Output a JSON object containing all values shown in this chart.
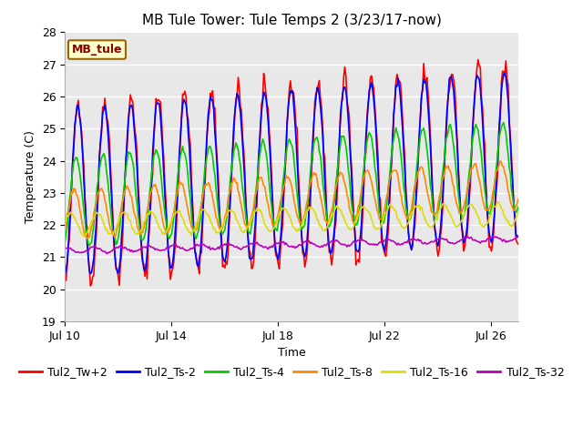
{
  "title": "MB Tule Tower: Tule Temps 2 (3/23/17-now)",
  "xlabel": "Time",
  "ylabel": "Temperature (C)",
  "ylim": [
    19.0,
    28.0
  ],
  "xlim": [
    0,
    17
  ],
  "yticks": [
    19.0,
    20.0,
    21.0,
    22.0,
    23.0,
    24.0,
    25.0,
    26.0,
    27.0,
    28.0
  ],
  "xtick_positions": [
    0,
    4,
    8,
    12,
    16
  ],
  "xtick_labels": [
    "Jul 10",
    "Jul 14",
    "Jul 18",
    "Jul 22",
    "Jul 26"
  ],
  "legend_labels": [
    "Tul2_Tw+2",
    "Tul2_Ts-2",
    "Tul2_Ts-4",
    "Tul2_Ts-8",
    "Tul2_Ts-16",
    "Tul2_Ts-32"
  ],
  "legend_colors": [
    "#ff0000",
    "#0000ff",
    "#00cc00",
    "#ff8800",
    "#dddd00",
    "#bb00bb"
  ],
  "annotation_text": "MB_tule",
  "annotation_bg": "#ffffcc",
  "annotation_border": "#996600",
  "annotation_text_color": "#880000",
  "plot_bg": "#e8e8e8",
  "fig_bg": "#ffffff",
  "title_fontsize": 11,
  "axis_label_fontsize": 9,
  "tick_fontsize": 9,
  "legend_fontsize": 9,
  "linewidth": 1.2,
  "series_params": {
    "tw2": {
      "amp": 2.8,
      "base": 23.0,
      "trend": 0.07,
      "phase": -1.57,
      "amp2": 0.0,
      "phase2": 0.0
    },
    "ts2": {
      "amp": 2.6,
      "base": 23.0,
      "trend": 0.07,
      "phase": -1.47,
      "amp2": 0.0,
      "phase2": 0.0
    },
    "ts4": {
      "amp": 1.4,
      "base": 22.7,
      "trend": 0.065,
      "phase": -1.1,
      "amp2": 0.0,
      "phase2": 0.0
    },
    "ts8": {
      "amp": 0.75,
      "base": 22.3,
      "trend": 0.055,
      "phase": -0.6,
      "amp2": 0.0,
      "phase2": 0.0
    },
    "ts16": {
      "amp": 0.35,
      "base": 22.0,
      "trend": 0.02,
      "phase": 0.2,
      "amp2": 0.0,
      "phase2": 0.0
    },
    "ts32": {
      "amp": 0.08,
      "base": 21.2,
      "trend": 0.022,
      "phase": 1.0,
      "amp2": 0.0,
      "phase2": 0.0
    }
  }
}
